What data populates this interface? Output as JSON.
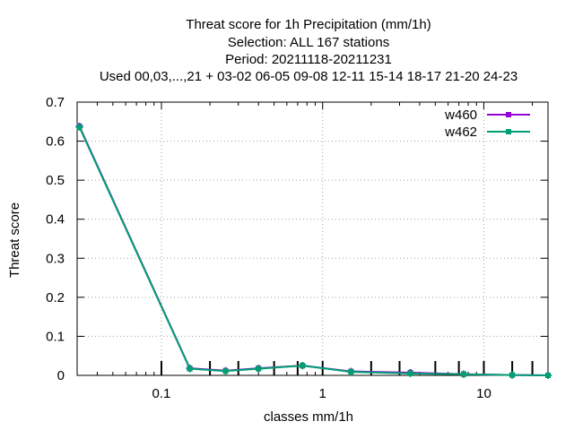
{
  "chart_data": {
    "type": "line",
    "title_lines": [
      "Threat score  for 1h Precipitation (mm/1h)",
      "Selection: ALL    167 stations",
      "Period: 20211118-20211231",
      "Used  00,03,...,21  + 03-02 06-05 09-08 12-11 15-14 18-17 21-20 24-23"
    ],
    "xlabel": "classes mm/1h",
    "ylabel": "Threat score",
    "xscale": "log",
    "xlim": [
      0.03,
      25
    ],
    "ylim": [
      0,
      0.7
    ],
    "x_ticks": [
      {
        "value": 0.1,
        "label": "0.1"
      },
      {
        "value": 1,
        "label": "1"
      },
      {
        "value": 10,
        "label": "10"
      }
    ],
    "y_ticks": [
      {
        "value": 0,
        "label": "0"
      },
      {
        "value": 0.1,
        "label": "0.1"
      },
      {
        "value": 0.2,
        "label": "0.2"
      },
      {
        "value": 0.3,
        "label": "0.3"
      },
      {
        "value": 0.4,
        "label": "0.4"
      },
      {
        "value": 0.5,
        "label": "0.5"
      },
      {
        "value": 0.6,
        "label": "0.6"
      },
      {
        "value": 0.7,
        "label": "0.7"
      }
    ],
    "grid": true,
    "legend_position": "top-right",
    "class_bounds": [
      0.1,
      0.2,
      0.3,
      0.5,
      0.7,
      1,
      2,
      3,
      5,
      7,
      10,
      15,
      20
    ],
    "series": [
      {
        "name": "w460",
        "color": "#9400d3",
        "x": [
          0.031,
          0.15,
          0.25,
          0.4,
          0.75,
          1.5,
          3.5,
          7.5,
          15,
          25
        ],
        "y": [
          0.638,
          0.018,
          0.012,
          0.018,
          0.025,
          0.01,
          0.007,
          0.003,
          0.001,
          0.0
        ]
      },
      {
        "name": "w462",
        "color": "#009e73",
        "x": [
          0.031,
          0.15,
          0.25,
          0.4,
          0.75,
          1.5,
          3.5,
          7.5,
          15,
          25
        ],
        "y": [
          0.636,
          0.017,
          0.011,
          0.017,
          0.025,
          0.009,
          0.005,
          0.003,
          0.001,
          0.0
        ]
      }
    ]
  }
}
